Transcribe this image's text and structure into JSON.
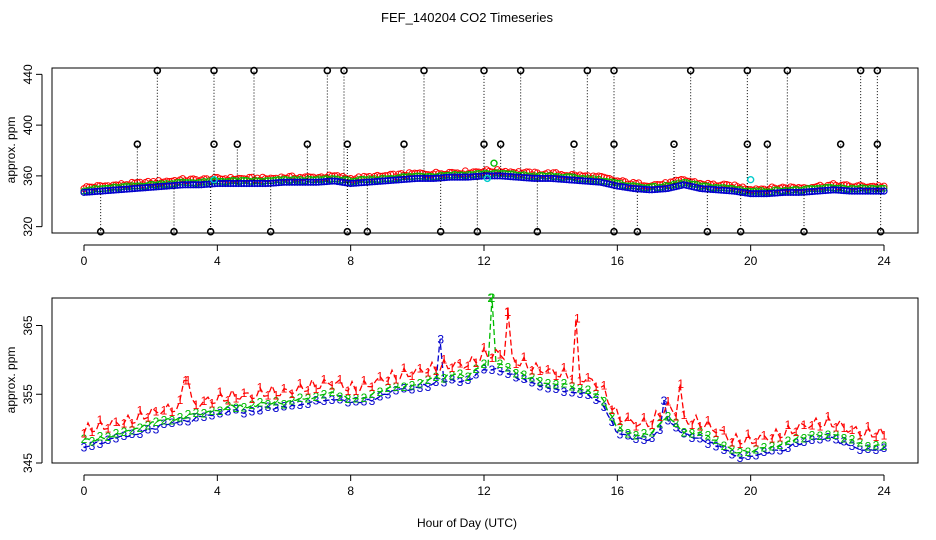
{
  "title": "FEF_140204  CO2 Timeseries",
  "xlabel": "Hour of Day (UTC)",
  "colors": {
    "series1": "#ff0000",
    "series2": "#00bb00",
    "series3": "#0000cc",
    "flag_black": "#000000",
    "flag_cyan": "#00cccc"
  },
  "chart_data": [
    {
      "type": "scatter",
      "panel": "top",
      "ylabel": "approx. ppm",
      "xlim": [
        0,
        24
      ],
      "ylim": [
        315,
        445
      ],
      "xticks": [
        "0",
        "4",
        "8",
        "12",
        "16",
        "20",
        "24"
      ],
      "yticks": [
        "320",
        "360",
        "400",
        "440"
      ],
      "baseline": {
        "x": [
          0,
          0.5,
          1,
          1.5,
          2,
          2.5,
          3,
          3.5,
          4,
          4.5,
          5,
          5.5,
          6,
          6.5,
          7,
          7.5,
          8,
          8.5,
          9,
          9.5,
          10,
          10.5,
          11,
          11.5,
          12,
          12.5,
          13,
          13.5,
          14,
          14.5,
          15,
          15.5,
          16,
          16.5,
          17,
          17.5,
          18,
          18.5,
          19,
          19.5,
          20,
          20.5,
          21,
          21.5,
          22,
          22.5,
          23,
          23.5,
          24
        ],
        "y": [
          347,
          348,
          349,
          350,
          351,
          352,
          353,
          353,
          354,
          354,
          354,
          354,
          355,
          355,
          355,
          356,
          354,
          355,
          356,
          357,
          358,
          358,
          359,
          359,
          360,
          360,
          359,
          358,
          358,
          357,
          356,
          355,
          352,
          350,
          349,
          350,
          353,
          350,
          349,
          348,
          346,
          346,
          347,
          347,
          348,
          349,
          348,
          348,
          348
        ]
      },
      "outliers_high": [
        2.2,
        3.9,
        5.1,
        7.3,
        7.8,
        10.2,
        12.0,
        13.1,
        15.1,
        15.9,
        18.2,
        19.9,
        21.1,
        23.3,
        23.8
      ],
      "outliers_mid": [
        1.6,
        3.9,
        4.6,
        6.7,
        7.9,
        9.6,
        12.0,
        12.5,
        14.7,
        15.9,
        17.7,
        19.9,
        20.5,
        22.7,
        23.8
      ],
      "outliers_low": [
        0.5,
        2.7,
        3.8,
        5.6,
        7.9,
        8.5,
        10.7,
        11.8,
        13.6,
        15.9,
        16.6,
        18.7,
        19.7,
        21.6,
        23.9
      ],
      "outlier_values": {
        "high": 443,
        "mid": 385,
        "low": 316
      },
      "cyan_points": [
        {
          "x": 3.9,
          "y": 357
        },
        {
          "x": 12.1,
          "y": 358
        },
        {
          "x": 20.0,
          "y": 357
        }
      ],
      "green_points": [
        {
          "x": 12.3,
          "y": 370
        }
      ]
    },
    {
      "type": "line",
      "panel": "bottom",
      "ylabel": "approx. ppm",
      "xlim": [
        0,
        24
      ],
      "ylim": [
        345,
        369
      ],
      "xticks": [
        "0",
        "4",
        "8",
        "12",
        "16",
        "20",
        "24"
      ],
      "yticks": [
        "345",
        "355",
        "365"
      ],
      "series": [
        {
          "name": "1",
          "color": "#ff0000",
          "offset": 1.8
        },
        {
          "name": "2",
          "color": "#00bb00",
          "offset": 0.7
        },
        {
          "name": "3",
          "color": "#0000cc",
          "offset": 0
        }
      ],
      "base": {
        "x": [
          0,
          0.5,
          1,
          1.5,
          2,
          2.5,
          3,
          3.5,
          4,
          4.5,
          5,
          5.5,
          6,
          6.5,
          7,
          7.5,
          8,
          8.5,
          9,
          9.5,
          10,
          10.5,
          11,
          11.5,
          12,
          12.5,
          13,
          13.5,
          14,
          14.5,
          15,
          15.5,
          16,
          16.5,
          17,
          17.5,
          18,
          18.5,
          19,
          19.5,
          20,
          20.5,
          21,
          21.5,
          22,
          22.5,
          23,
          23.5,
          24
        ],
        "y": [
          347.5,
          348,
          348.5,
          349,
          350,
          350.5,
          351,
          351.5,
          352,
          352.5,
          352.5,
          353,
          353,
          353.5,
          354,
          354.5,
          353.5,
          354,
          355,
          355.5,
          356,
          356.5,
          357,
          357,
          358.5,
          358.5,
          357.5,
          356.5,
          356,
          355.5,
          355,
          354,
          349.5,
          348.5,
          348.5,
          351,
          349,
          348.5,
          347.5,
          346,
          346,
          346.5,
          347,
          348,
          348.5,
          348.5,
          347.5,
          347,
          347
        ]
      },
      "spikes": [
        {
          "series": "1",
          "x": 3.05,
          "y": 357
        },
        {
          "series": "3",
          "x": 10.7,
          "y": 363
        },
        {
          "series": "2",
          "x": 12.2,
          "y": 369
        },
        {
          "series": "1",
          "x": 12.7,
          "y": 367
        },
        {
          "series": "1",
          "x": 14.8,
          "y": 366
        },
        {
          "series": "3",
          "x": 17.4,
          "y": 354
        },
        {
          "series": "1",
          "x": 17.9,
          "y": 356.5
        }
      ]
    }
  ]
}
